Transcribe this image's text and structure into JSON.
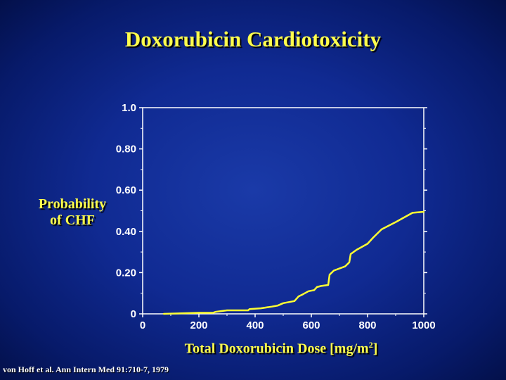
{
  "slide": {
    "title": "Doxorubicin Cardiotoxicity",
    "citation": "von Hoff et al. Ann Intern Med 91:710-7, 1979"
  },
  "colors": {
    "title_text": "#ffff4d",
    "curve": "#ffff33",
    "axes": "#ffffff",
    "background": "#102a92"
  },
  "chart_data": {
    "type": "line",
    "title": "",
    "xlabel_main": "Total Doxorubicin Dose [mg/m",
    "xlabel_sup": "2",
    "xlabel_end": "]",
    "ylabel_line1": "Probability",
    "ylabel_line2": "of CHF",
    "xlim": [
      0,
      1000
    ],
    "ylim": [
      0,
      1.0
    ],
    "x_ticks": [
      0,
      200,
      400,
      600,
      800,
      1000
    ],
    "x_tick_labels": [
      "0",
      "200",
      "400",
      "600",
      "800",
      "1000"
    ],
    "y_ticks": [
      0,
      0.2,
      0.4,
      0.6,
      0.8,
      1.0
    ],
    "y_tick_labels": [
      "0",
      "0.20",
      "0.40",
      "0.60",
      "0.80",
      "1.0"
    ],
    "grid": false,
    "series": [
      {
        "x": [
          75,
          150,
          200,
          250,
          260,
          300,
          375,
          380,
          420,
          460,
          480,
          500,
          540,
          555,
          570,
          590,
          610,
          620,
          635,
          660,
          665,
          680,
          720,
          735,
          740,
          760,
          800,
          820,
          850,
          900,
          960,
          1000
        ],
        "y": [
          0.0,
          0.003,
          0.005,
          0.005,
          0.01,
          0.017,
          0.017,
          0.023,
          0.027,
          0.035,
          0.04,
          0.052,
          0.062,
          0.085,
          0.095,
          0.11,
          0.115,
          0.13,
          0.135,
          0.14,
          0.19,
          0.21,
          0.23,
          0.25,
          0.29,
          0.31,
          0.34,
          0.37,
          0.41,
          0.445,
          0.49,
          0.495
        ]
      }
    ]
  }
}
